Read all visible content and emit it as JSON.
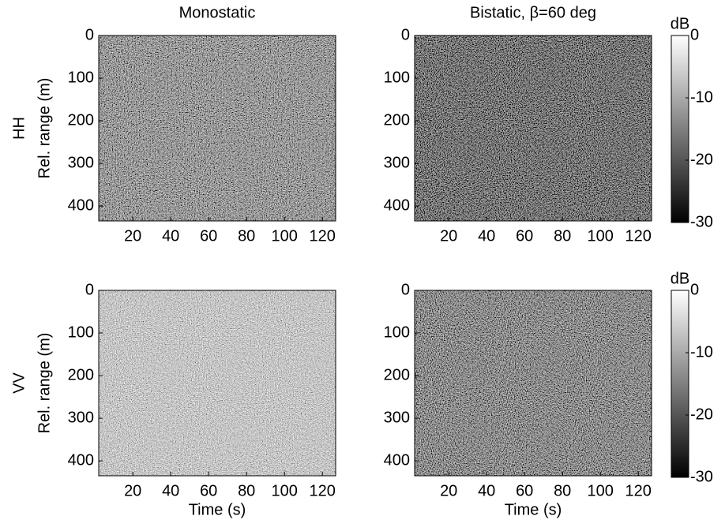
{
  "chart_data": [
    {
      "type": "heatmap",
      "title": "Monostatic",
      "row_label": "HH",
      "ylabel": "Rel. range (m)",
      "xlim": [
        2,
        127
      ],
      "xticks": [
        20,
        40,
        60,
        80,
        100,
        120
      ],
      "ylim": [
        435,
        0
      ],
      "yticks": [
        0,
        100,
        200,
        300,
        400
      ]
    },
    {
      "type": "heatmap",
      "title": "Bistatic, β=60 deg",
      "xlim": [
        2,
        127
      ],
      "xticks": [
        20,
        40,
        60,
        80,
        100,
        120
      ],
      "ylim": [
        435,
        0
      ],
      "yticks": [
        0,
        100,
        200,
        300,
        400
      ],
      "colorbar": {
        "label": "dB",
        "lim": [
          -30,
          0
        ],
        "ticks": [
          0,
          -10,
          -20,
          -30
        ]
      }
    },
    {
      "type": "heatmap",
      "row_label": "VV",
      "ylabel": "Rel. range (m)",
      "xlabel": "Time (s)",
      "xlim": [
        2,
        127
      ],
      "xticks": [
        20,
        40,
        60,
        80,
        100,
        120
      ],
      "ylim": [
        435,
        0
      ],
      "yticks": [
        0,
        100,
        200,
        300,
        400
      ]
    },
    {
      "type": "heatmap",
      "xlabel": "Time (s)",
      "xlim": [
        2,
        127
      ],
      "xticks": [
        20,
        40,
        60,
        80,
        100,
        120
      ],
      "ylim": [
        435,
        0
      ],
      "yticks": [
        0,
        100,
        200,
        300,
        400
      ],
      "colorbar": {
        "label": "dB",
        "lim": [
          -30,
          0
        ],
        "ticks": [
          0,
          -10,
          -20,
          -30
        ]
      }
    }
  ]
}
